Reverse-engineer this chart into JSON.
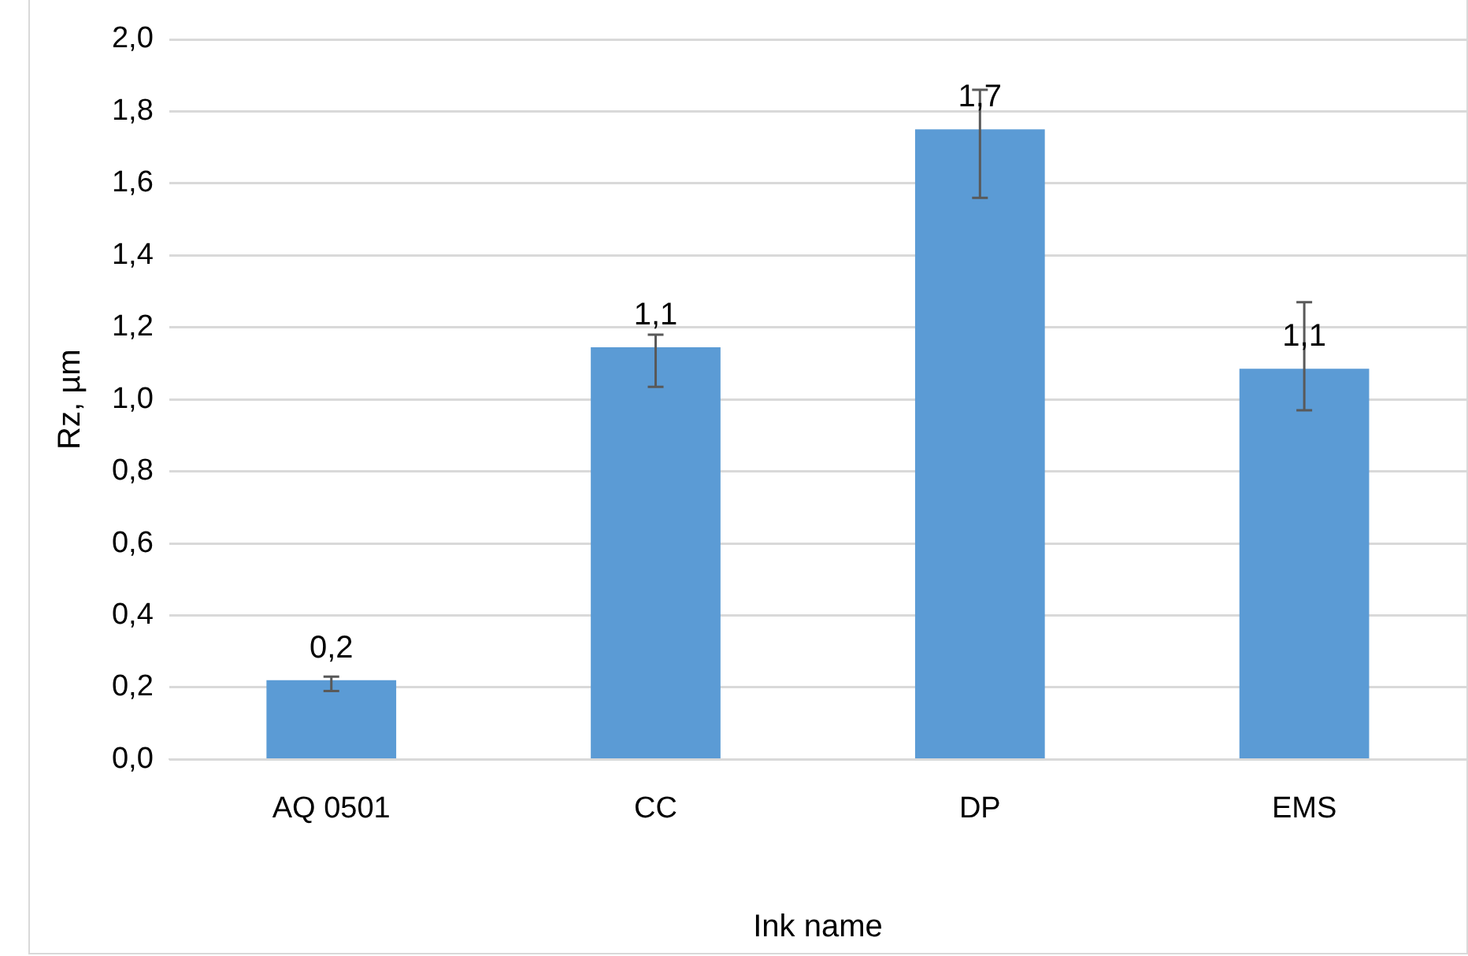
{
  "chart_data": {
    "type": "bar",
    "xlabel": "Ink name",
    "ylabel": "Rz, µm",
    "categories": [
      "AQ 0501",
      "CC",
      "DP",
      "EMS"
    ],
    "values": [
      0.22,
      1.145,
      1.75,
      1.085
    ],
    "errors": [
      [
        0.19,
        0.23
      ],
      [
        1.035,
        1.18
      ],
      [
        1.56,
        1.86
      ],
      [
        0.97,
        1.27
      ]
    ],
    "value_labels": [
      "0,2",
      "1,1",
      "1,7",
      "1,1"
    ],
    "color": "#5b9bd5",
    "ylim": [
      0,
      2
    ],
    "yticks": [
      {
        "value": 0,
        "label": "0,0"
      },
      {
        "value": 0.2,
        "label": "0,2"
      },
      {
        "value": 0.4,
        "label": "0,4"
      },
      {
        "value": 0.6,
        "label": "0,6"
      },
      {
        "value": 0.8,
        "label": "0,8"
      },
      {
        "value": 1,
        "label": "1,0"
      },
      {
        "value": 1.2,
        "label": "1,2"
      },
      {
        "value": 1.4,
        "label": "1,4"
      },
      {
        "value": 1.6,
        "label": "1,6"
      },
      {
        "value": 1.8,
        "label": "1,8"
      },
      {
        "value": 2,
        "label": "2,0"
      }
    ],
    "grid": "y",
    "legend": false
  }
}
